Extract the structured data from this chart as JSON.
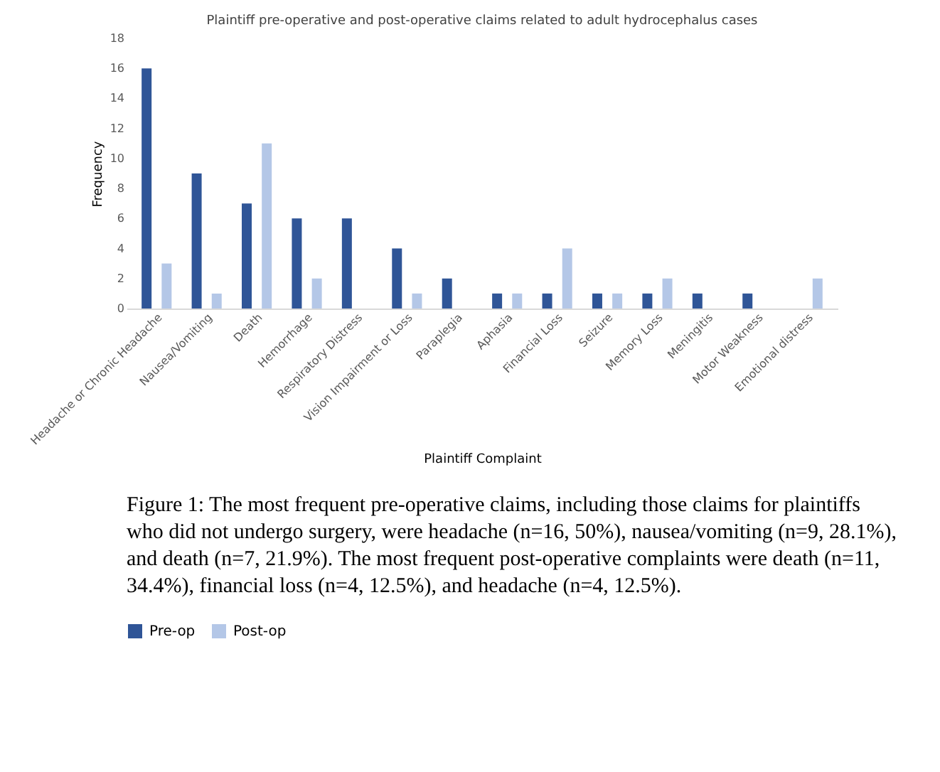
{
  "chart_data": {
    "type": "bar",
    "title": "Plaintiff pre-operative and post-operative claims related to adult hydrocephalus cases",
    "xlabel": "Plaintiff Complaint",
    "ylabel": "Frequency",
    "categories": [
      "Headache or Chronic Headache",
      "Nausea/Vomiting",
      "Death",
      "Hemorrhage",
      "Respiratory Distress",
      "Vision Impairment or Loss",
      "Paraplegia",
      "Aphasia",
      "Financial Loss",
      "Seizure",
      "Memory Loss",
      "Meningitis",
      "Motor Weakness",
      "Emotional distress"
    ],
    "series": [
      {
        "name": "Pre-op",
        "color": "#2f5597",
        "values": [
          16,
          9,
          7,
          6,
          6,
          4,
          2,
          1,
          1,
          1,
          1,
          1,
          1,
          0
        ]
      },
      {
        "name": "Post-op",
        "color": "#b4c7e7",
        "values": [
          3,
          1,
          11,
          2,
          0,
          1,
          0,
          1,
          4,
          1,
          2,
          0,
          0,
          2
        ]
      }
    ],
    "ylim": [
      0,
      18
    ],
    "yticks": [
      0,
      2,
      4,
      6,
      8,
      10,
      12,
      14,
      16,
      18
    ],
    "grid": false,
    "legend": "bottom",
    "annotations": [
      "Figure 1: The most frequent pre-operative claims, including those claims for plaintiffs who did not undergo surgery, were headache (n=16, 50%), nausea/vomiting (n=9, 28.1%), and death (n=7, 21.9%). The most frequent post-operative complaints were death (n=11, 34.4%), financial loss (n=4, 12.5%), and headache (n=4, 12.5%)."
    ]
  }
}
